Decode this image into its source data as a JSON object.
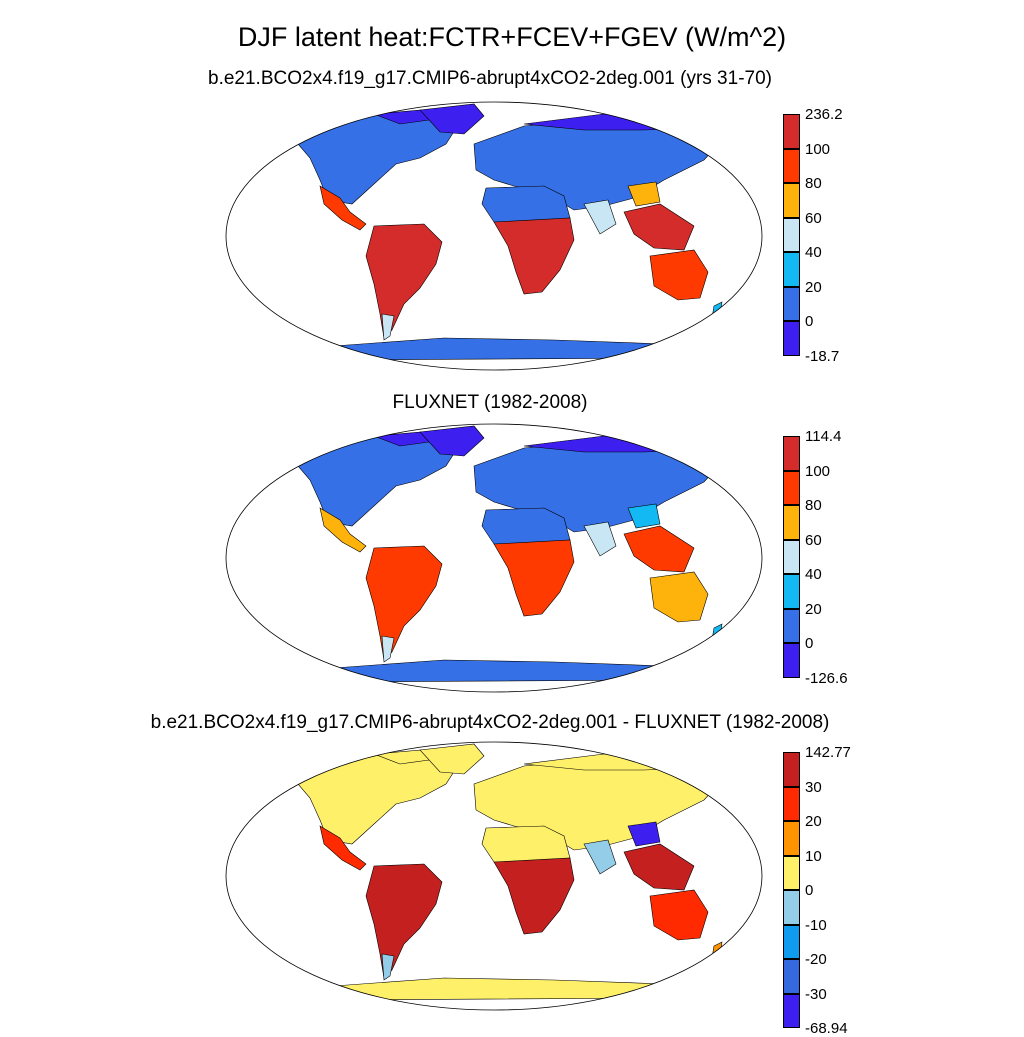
{
  "title": "DJF latent heat:FCTR+FCEV+FGEV (W/m^2)",
  "panels": [
    {
      "subtitle": "b.e21.BCO2x4.f19_g17.CMIP6-abrupt4xCO2-2deg.001 (yrs 31-70)",
      "colorbar": {
        "labels": [
          "236.2",
          "100",
          "80",
          "60",
          "40",
          "20",
          "0",
          "-18.7"
        ],
        "colors": [
          "#d42b2b",
          "#ff3a00",
          "#fdb30b",
          "#c9e6f5",
          "#13b9f3",
          "#3670e6",
          "#3d1ff0"
        ]
      },
      "palette": {
        "cold": "#3670e6",
        "polar": "#3d1ff0",
        "tropic": "#d42b2b",
        "warm": "#ff3a00",
        "mid": "#fdb30b",
        "light": "#c9e6f5",
        "blue2": "#13b9f3"
      }
    },
    {
      "subtitle": "FLUXNET (1982-2008)",
      "colorbar": {
        "labels": [
          "114.4",
          "100",
          "80",
          "60",
          "40",
          "20",
          "0",
          "-126.6"
        ],
        "colors": [
          "#d42b2b",
          "#ff3a00",
          "#fdb30b",
          "#c9e6f5",
          "#13b9f3",
          "#3670e6",
          "#3d1ff0"
        ]
      },
      "palette": {
        "cold": "#3670e6",
        "polar": "#3d1ff0",
        "tropic": "#ff3a00",
        "warm": "#fdb30b",
        "mid": "#13b9f3",
        "light": "#c9e6f5",
        "blue2": "#13b9f3"
      }
    },
    {
      "subtitle": "b.e21.BCO2x4.f19_g17.CMIP6-abrupt4xCO2-2deg.001 - FLUXNET (1982-2008)",
      "colorbar": {
        "labels": [
          "142.77",
          "30",
          "20",
          "10",
          "0",
          "-10",
          "-20",
          "-30",
          "-68.94"
        ],
        "colors": [
          "#c42020",
          "#ff2a00",
          "#ff9400",
          "#fff06a",
          "#93cde8",
          "#0e9bf0",
          "#346ade",
          "#3d1ff0"
        ]
      },
      "palette": {
        "cold": "#fff06a",
        "polar": "#fff06a",
        "tropic": "#c42020",
        "warm": "#ff2a00",
        "mid": "#3d1ff0",
        "light": "#93cde8",
        "blue2": "#ff9400"
      }
    }
  ]
}
